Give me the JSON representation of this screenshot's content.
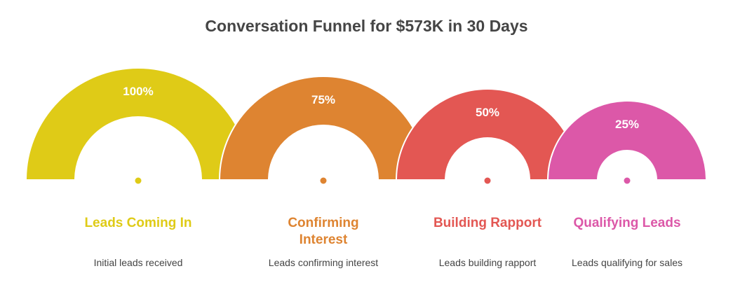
{
  "title": "Conversation Funnel for $573K in 30 Days",
  "stages": [
    {
      "percent": "100%",
      "value": 100,
      "label": "Leads Coming In",
      "description": "Initial leads received",
      "color": "#DFCB17"
    },
    {
      "percent": "75%",
      "value": 75,
      "label": "Confirming Interest",
      "description": "Leads confirming interest",
      "color": "#DE8431"
    },
    {
      "percent": "50%",
      "value": 50,
      "label": "Building Rapport",
      "description": "Leads building rapport",
      "color": "#E35753"
    },
    {
      "percent": "25%",
      "value": 25,
      "label": "Qualifying Leads",
      "description": "Leads qualifying for sales",
      "color": "#DC58A8"
    }
  ]
}
